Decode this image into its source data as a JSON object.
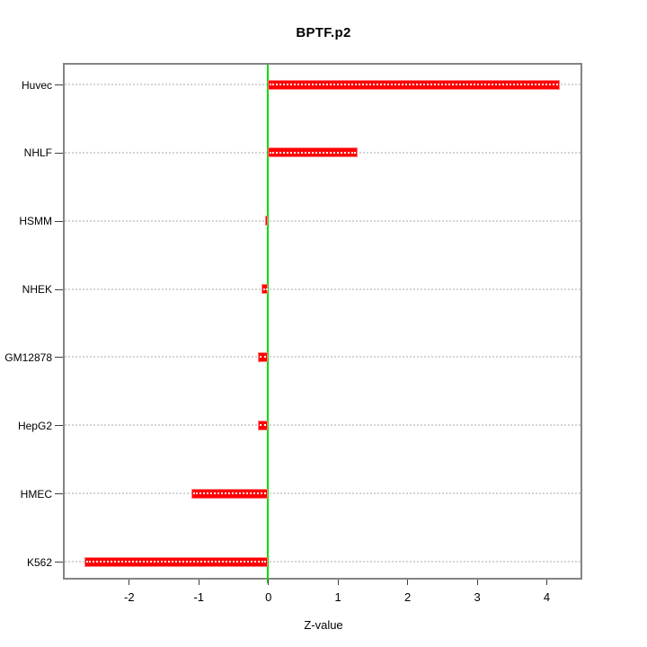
{
  "chart_data": {
    "type": "bar",
    "orientation": "horizontal",
    "title": "BPTF.p2",
    "xlabel": "Z-value",
    "ylabel": "",
    "categories": [
      "Huvec",
      "NHLF",
      "HSMM",
      "NHEK",
      "GM12878",
      "HepG2",
      "HMEC",
      "K562"
    ],
    "values": [
      4.19,
      1.29,
      -0.04,
      -0.09,
      -0.14,
      -0.15,
      -1.1,
      -2.63
    ],
    "xlim": [
      -2.92,
      4.49
    ],
    "xticks": [
      -2,
      -1,
      0,
      1,
      2,
      3,
      4
    ],
    "zero_line": 0,
    "grid": "horizontal-dotted",
    "legend": "none",
    "colors": {
      "bar": "#ff0000",
      "bar_edge": "#ff8080",
      "zero_line": "#00dd00",
      "frame": "#848484",
      "grid": "#d4d4d4",
      "grid_over_bar": "#ffffff",
      "tick": "#404040",
      "text": "#000000",
      "background": "#ffffff"
    }
  }
}
